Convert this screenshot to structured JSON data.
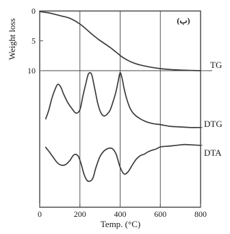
{
  "chart_data": {
    "type": "line",
    "xlabel": "Temp. (°C)",
    "ylabel": "Weight loss",
    "panel_label": "(ب)",
    "x_ticks": [
      0,
      200,
      400,
      600,
      800
    ],
    "x_tick_labels": [
      "0",
      "200",
      "400",
      "600",
      "800"
    ],
    "xlim": [
      0,
      800
    ],
    "tg_axis": {
      "ylim": [
        0,
        10
      ],
      "ticks": [
        0,
        5,
        10
      ],
      "tick_labels": [
        "0",
        "5",
        "10"
      ]
    },
    "grid_x": [
      200,
      400,
      600
    ],
    "series": [
      {
        "name": "TG",
        "x": [
          0,
          20,
          50,
          80,
          110,
          140,
          170,
          200,
          230,
          260,
          290,
          320,
          350,
          380,
          410,
          440,
          470,
          500,
          550,
          600,
          650,
          700,
          750,
          800
        ],
        "y": [
          0.1,
          0.2,
          0.35,
          0.6,
          0.85,
          1.1,
          1.55,
          2.2,
          3.0,
          3.9,
          4.7,
          5.4,
          6.1,
          6.9,
          7.7,
          8.3,
          8.75,
          9.05,
          9.4,
          9.65,
          9.8,
          9.9,
          9.95,
          10.0
        ]
      },
      {
        "name": "DTG",
        "x": [
          30,
          45,
          60,
          75,
          90,
          105,
          120,
          140,
          160,
          180,
          200,
          215,
          230,
          240,
          250,
          260,
          275,
          290,
          305,
          320,
          335,
          350,
          365,
          380,
          390,
          400,
          410,
          420,
          435,
          450,
          470,
          500,
          530,
          560,
          600,
          650,
          700,
          750,
          800
        ],
        "y": [
          20,
          35,
          55,
          70,
          80,
          75,
          62,
          48,
          38,
          30,
          36,
          60,
          82,
          96,
          100,
          95,
          70,
          45,
          30,
          25,
          28,
          35,
          50,
          68,
          85,
          100,
          90,
          72,
          52,
          38,
          28,
          20,
          15,
          12,
          10,
          7,
          6,
          5,
          5
        ]
      },
      {
        "name": "DTA",
        "x": [
          30,
          50,
          70,
          90,
          110,
          130,
          150,
          170,
          190,
          205,
          220,
          235,
          250,
          265,
          280,
          300,
          320,
          340,
          360,
          380,
          400,
          420,
          440,
          460,
          480,
          500,
          520,
          540,
          560,
          580,
          600,
          640,
          680,
          720,
          760,
          800
        ],
        "y": [
          85,
          72,
          58,
          45,
          40,
          42,
          52,
          66,
          64,
          45,
          18,
          2,
          0,
          8,
          35,
          62,
          76,
          82,
          82,
          68,
          35,
          18,
          24,
          40,
          55,
          64,
          68,
          74,
          78,
          81,
          86,
          88,
          90,
          92,
          91,
          90
        ]
      }
    ]
  }
}
